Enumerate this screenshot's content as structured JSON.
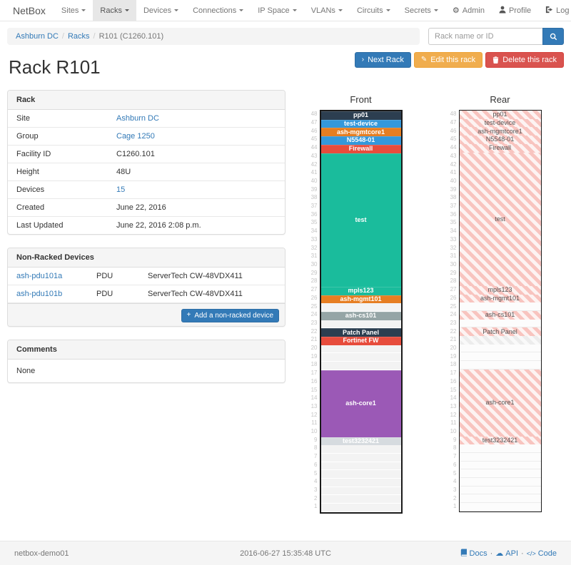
{
  "navbar": {
    "brand": "NetBox",
    "items": [
      {
        "label": "Sites",
        "active": false
      },
      {
        "label": "Racks",
        "active": true
      },
      {
        "label": "Devices",
        "active": false
      },
      {
        "label": "Connections",
        "active": false
      },
      {
        "label": "IP Space",
        "active": false
      },
      {
        "label": "VLANs",
        "active": false
      },
      {
        "label": "Circuits",
        "active": false
      },
      {
        "label": "Secrets",
        "active": false
      }
    ],
    "right": [
      {
        "label": "Admin",
        "icon": "gear-icon"
      },
      {
        "label": "Profile",
        "icon": "user-icon"
      },
      {
        "label": "Log out",
        "icon": "logout-icon"
      }
    ]
  },
  "breadcrumb": {
    "items": [
      {
        "label": "Ashburn DC",
        "link": true
      },
      {
        "label": "Racks",
        "link": true
      },
      {
        "label": "R101 (C1260.101)",
        "link": false
      }
    ]
  },
  "search": {
    "placeholder": "Rack name or ID"
  },
  "actions": {
    "next_label": "Next Rack",
    "edit_label": "Edit this rack",
    "delete_label": "Delete this rack"
  },
  "page_title": "Rack R101",
  "rack_panel": {
    "title": "Rack",
    "rows": [
      {
        "label": "Site",
        "value": "Ashburn DC",
        "link": true
      },
      {
        "label": "Group",
        "value": "Cage 1250",
        "link": true
      },
      {
        "label": "Facility ID",
        "value": "C1260.101",
        "link": false
      },
      {
        "label": "Height",
        "value": "48U",
        "link": false
      },
      {
        "label": "Devices",
        "value": "15",
        "link": true
      },
      {
        "label": "Created",
        "value": "June 22, 2016",
        "link": false
      },
      {
        "label": "Last Updated",
        "value": "June 22, 2016 2:08 p.m.",
        "link": false
      }
    ]
  },
  "nonracked_panel": {
    "title": "Non-Racked Devices",
    "rows": [
      {
        "name": "ash-pdu101a",
        "role": "PDU",
        "type": "ServerTech CW-48VDX411"
      },
      {
        "name": "ash-pdu101b",
        "role": "PDU",
        "type": "ServerTech CW-48VDX411"
      }
    ],
    "add_label": "Add a non-racked device"
  },
  "comments_panel": {
    "title": "Comments",
    "body": "None"
  },
  "elevations": {
    "front_title": "Front",
    "rear_title": "Rear",
    "units_total": 48,
    "slots": [
      {
        "label": "pp01",
        "u": 1,
        "color": "#2c3e50"
      },
      {
        "label": "test-device",
        "u": 1,
        "color": "#3498db"
      },
      {
        "label": "ash-mgmtcore1",
        "u": 1,
        "color": "#e67e22"
      },
      {
        "label": "N5548-01",
        "u": 1,
        "color": "#3498db"
      },
      {
        "label": "Firewall",
        "u": 1,
        "color": "#e74c3c"
      },
      {
        "label": "test",
        "u": 16,
        "color": "#1abc9c"
      },
      {
        "label": "mpls123",
        "u": 1,
        "color": "#1abc9c"
      },
      {
        "label": "ash-mgmt101",
        "u": 1,
        "color": "#e67e22"
      },
      {
        "empty": true,
        "u": 1
      },
      {
        "label": "ash-cs101",
        "u": 1,
        "color": "#95a5a6"
      },
      {
        "empty": true,
        "u": 1
      },
      {
        "label": "Patch Panel",
        "u": 1,
        "color": "#2c3e50"
      },
      {
        "label": "Fortinet FW",
        "u": 1,
        "color": "#e74c3c",
        "rear_hidden": true
      },
      {
        "empty": true,
        "u": 1
      },
      {
        "empty": true,
        "u": 1
      },
      {
        "empty": true,
        "u": 1
      },
      {
        "label": "ash-core1",
        "u": 8,
        "color": "#9b59b6"
      },
      {
        "label": "test3232421",
        "u": 1,
        "color": "#d6dbdf"
      },
      {
        "empty": true,
        "u": 1
      },
      {
        "empty": true,
        "u": 1
      },
      {
        "empty": true,
        "u": 1
      },
      {
        "empty": true,
        "u": 1
      },
      {
        "empty": true,
        "u": 1
      },
      {
        "empty": true,
        "u": 1
      },
      {
        "empty": true,
        "u": 1
      },
      {
        "empty": true,
        "u": 1
      }
    ]
  },
  "footer": {
    "hostname": "netbox-demo01",
    "timestamp": "2016-06-27 15:35:48 UTC",
    "links": [
      {
        "label": "Docs",
        "icon": "book-icon"
      },
      {
        "label": "API",
        "icon": "cloud-icon"
      },
      {
        "label": "Code",
        "icon": "code-icon"
      }
    ]
  },
  "colors": {
    "link": "#337ab7",
    "btn_primary": "#337ab7",
    "btn_warning": "#f0ad4e",
    "btn_danger": "#d9534f",
    "navbar_active_bg": "#e7e7e7",
    "rear_stripe": "#f8c4bf"
  }
}
